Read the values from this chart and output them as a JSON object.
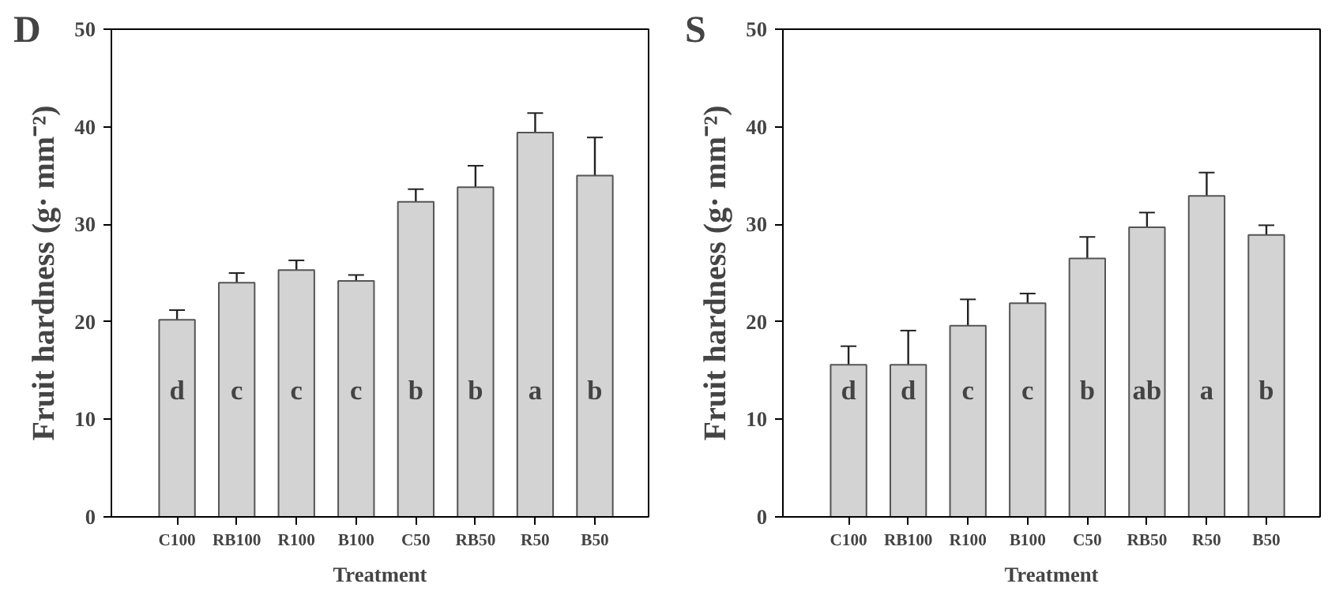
{
  "chart_data": [
    {
      "type": "bar",
      "title": "D",
      "xlabel": "Treatment",
      "ylabel": "Fruit hardness (g· mm⁻²)",
      "categories": [
        "C100",
        "RB100",
        "R100",
        "B100",
        "C50",
        "RB50",
        "R50",
        "B50"
      ],
      "series": [
        {
          "color": "#d3d3d3",
          "values": [
            20.2,
            24.0,
            25.3,
            24.2,
            32.3,
            33.8,
            39.4,
            35.0
          ],
          "errors": [
            1.0,
            1.0,
            1.0,
            0.6,
            1.3,
            2.2,
            2.0,
            3.9
          ]
        }
      ],
      "ylim": [
        0,
        50
      ],
      "yticks": [
        0,
        10,
        20,
        30,
        40,
        50
      ],
      "grid": false,
      "annotations": [
        "d",
        "c",
        "c",
        "c",
        "b",
        "b",
        "a",
        "b"
      ]
    },
    {
      "type": "bar",
      "title": "S",
      "xlabel": "Treatment",
      "ylabel": "Fruit hardness (g· mm⁻²)",
      "categories": [
        "C100",
        "RB100",
        "R100",
        "B100",
        "C50",
        "RB50",
        "R50",
        "B50"
      ],
      "series": [
        {
          "color": "#d3d3d3",
          "values": [
            15.6,
            15.6,
            19.6,
            21.9,
            26.5,
            29.7,
            32.9,
            28.9
          ],
          "errors": [
            1.9,
            3.5,
            2.7,
            1.0,
            2.2,
            1.5,
            2.4,
            1.0
          ]
        }
      ],
      "ylim": [
        0,
        50
      ],
      "yticks": [
        0,
        10,
        20,
        30,
        40,
        50
      ],
      "grid": false,
      "annotations": [
        "d",
        "d",
        "c",
        "c",
        "b",
        "ab",
        "a",
        "b"
      ]
    }
  ]
}
